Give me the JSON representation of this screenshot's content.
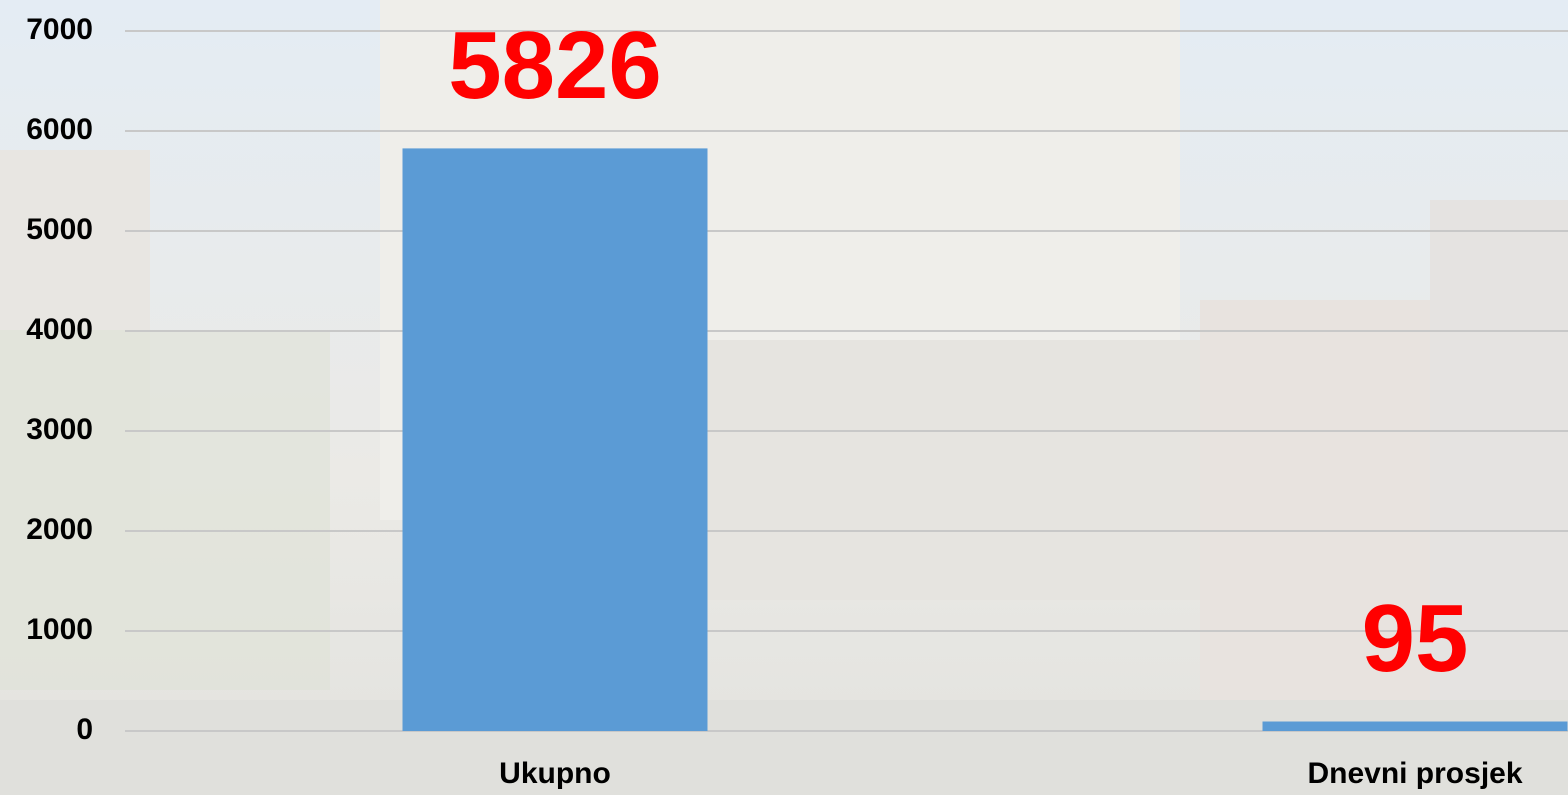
{
  "chart_data": {
    "type": "bar",
    "categories": [
      "Ukupno",
      "Dnevni prosjek"
    ],
    "values": [
      5826,
      95
    ],
    "color": "#5b9bd5",
    "value_label_color": "#ff0000",
    "ylim": [
      0,
      7000
    ],
    "yticks": [
      0,
      1000,
      2000,
      3000,
      4000,
      5000,
      6000,
      7000
    ],
    "grid": true
  }
}
